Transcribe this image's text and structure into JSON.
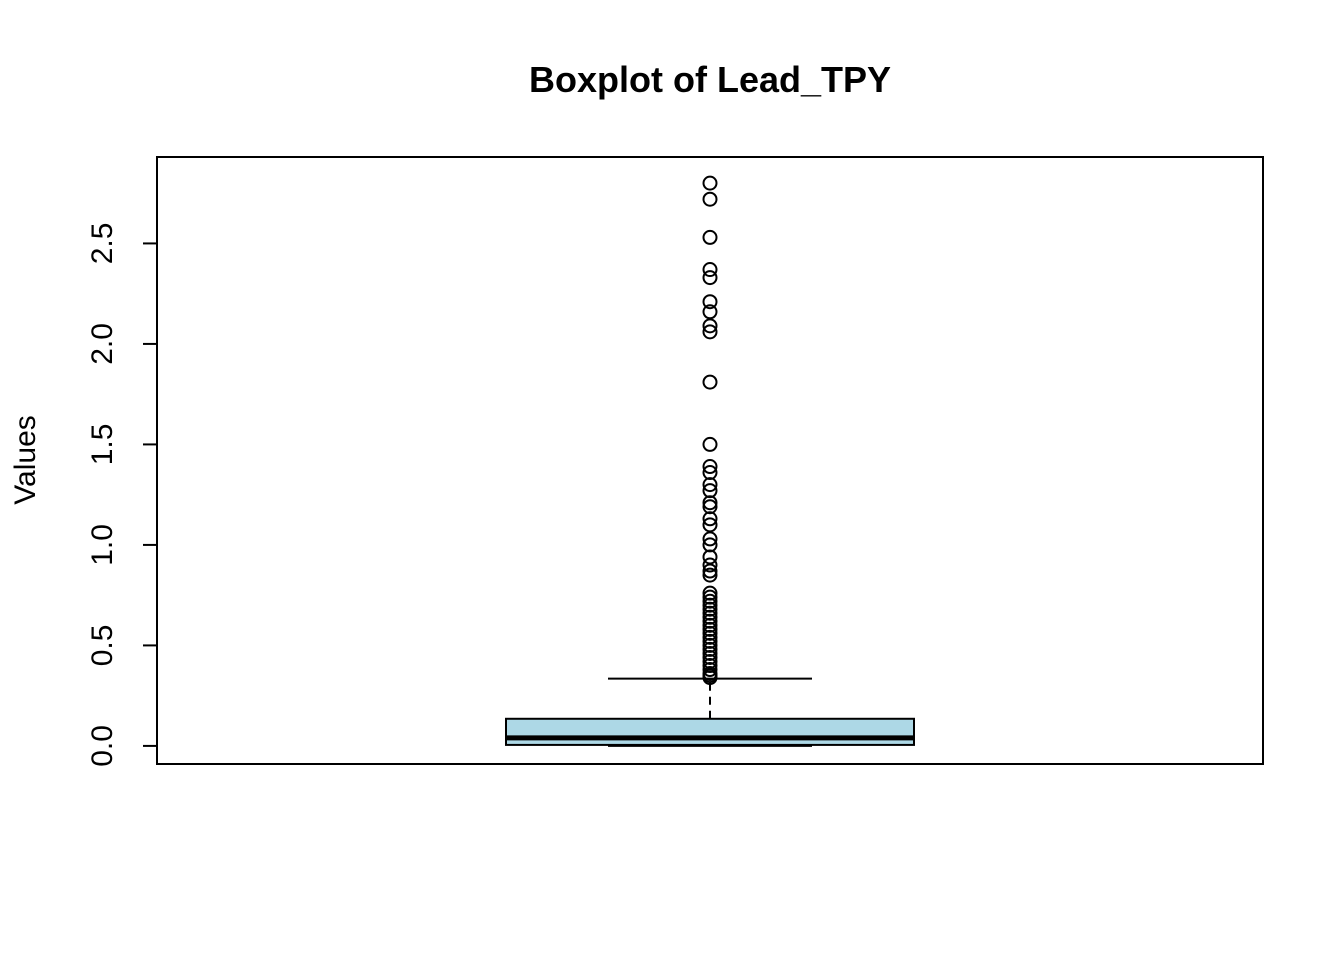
{
  "chart_data": {
    "type": "boxplot",
    "title": "Boxplot of Lead_TPY",
    "xlabel": "",
    "ylabel": "Values",
    "ylim": [
      -0.09,
      2.93
    ],
    "yticks": [
      0.0,
      0.5,
      1.0,
      1.5,
      2.0,
      2.5
    ],
    "ytick_labels": [
      "0.0",
      "0.5",
      "1.0",
      "1.5",
      "2.0",
      "2.5"
    ],
    "grid": false,
    "box_color": "#add8e6",
    "boxes": [
      {
        "whisker_low": 0.0,
        "q1": 0.005,
        "median": 0.04,
        "q3": 0.135,
        "whisker_high": 0.335,
        "outliers": [
          2.8,
          2.72,
          2.53,
          2.37,
          2.33,
          2.21,
          2.16,
          2.09,
          2.06,
          1.81,
          1.5,
          1.39,
          1.36,
          1.3,
          1.27,
          1.21,
          1.19,
          1.13,
          1.1,
          1.03,
          1.0,
          0.94,
          0.9,
          0.87,
          0.85,
          0.76,
          0.74,
          0.72,
          0.7,
          0.68,
          0.66,
          0.64,
          0.62,
          0.6,
          0.58,
          0.56,
          0.54,
          0.52,
          0.5,
          0.48,
          0.46,
          0.44,
          0.42,
          0.4,
          0.38,
          0.36,
          0.35,
          0.34
        ]
      }
    ]
  }
}
